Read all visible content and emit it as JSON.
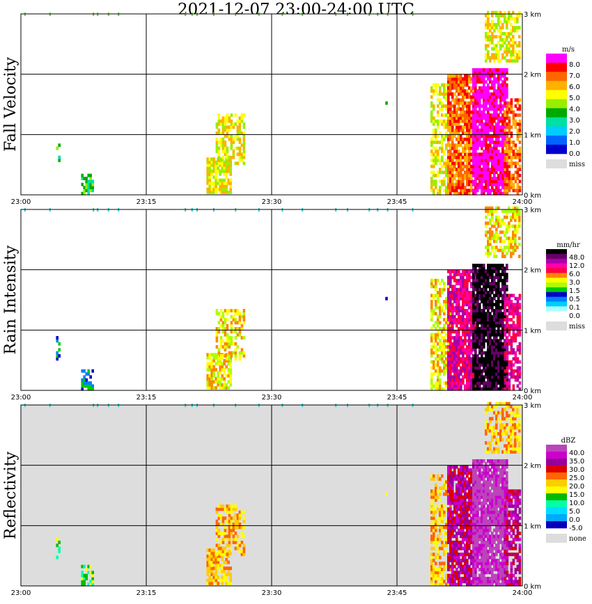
{
  "title": "2021-12-07   23:00-24:00 UTC",
  "chart_data": [
    {
      "type": "heatmap",
      "id": "fall_velocity",
      "ylabel": "Fall Velocity",
      "x_tick_labels": [
        "23:00",
        "23:15",
        "23:30",
        "23:45",
        "24:00"
      ],
      "y_tick_labels": [
        "0 km",
        "1 km",
        "2 km",
        "3 km"
      ],
      "ylim_km": [
        0,
        3
      ],
      "xlim_minutes": [
        0,
        60
      ],
      "background": "#ffffff",
      "legend": {
        "unit": "m/s",
        "labels": [
          "8.0",
          "7.0",
          "6.0",
          "5.0",
          "4.0",
          "3.0",
          "2.0",
          "1.0",
          "0.0"
        ],
        "colors": [
          "#ff00ff",
          "#ff0000",
          "#ff6600",
          "#ffb000",
          "#ffff00",
          "#99ee00",
          "#00aa00",
          "#00e0a0",
          "#00ccff",
          "#0066ff",
          "#0000cc"
        ],
        "extra_label": "miss",
        "extra_color": "#dddddd"
      }
    },
    {
      "type": "heatmap",
      "id": "rain_intensity",
      "ylabel": "Rain Intensity",
      "x_tick_labels": [
        "23:00",
        "23:15",
        "23:30",
        "23:45",
        "24:00"
      ],
      "y_tick_labels": [
        "0 km",
        "1 km",
        "2 km",
        "3 km"
      ],
      "ylim_km": [
        0,
        3
      ],
      "xlim_minutes": [
        0,
        60
      ],
      "background": "#ffffff",
      "legend": {
        "unit": "mm/hr",
        "labels": [
          "48.0",
          "12.0",
          "6.0",
          "3.0",
          "1.5",
          "0.5",
          "0.1",
          "0.0"
        ],
        "colors": [
          "#000000",
          "#660066",
          "#aa00aa",
          "#ff00aa",
          "#ff0044",
          "#ff8800",
          "#ffff00",
          "#aaff00",
          "#00cc00",
          "#0000cc",
          "#0080ff",
          "#00ccff",
          "#aaffff",
          "#ffffff"
        ],
        "extra_label": "miss",
        "extra_color": "#dddddd"
      }
    },
    {
      "type": "heatmap",
      "id": "reflectivity",
      "ylabel": "Reflectivity",
      "x_tick_labels": [
        "23:00",
        "23:15",
        "23:30",
        "23:45",
        "24:00"
      ],
      "y_tick_labels": [
        "0 km",
        "1 km",
        "2 km",
        "3 km"
      ],
      "ylim_km": [
        0,
        3
      ],
      "xlim_minutes": [
        0,
        60
      ],
      "background": "#dddddd",
      "legend": {
        "unit": "dBZ",
        "labels": [
          "40.0",
          "35.0",
          "30.0",
          "25.0",
          "20.0",
          "15.0",
          "10.0",
          "5.0",
          "0.0",
          "-5.0"
        ],
        "colors": [
          "#bb44bb",
          "#cc00cc",
          "#990099",
          "#dd0000",
          "#ff6600",
          "#ffcc00",
          "#ffff00",
          "#00bb00",
          "#00ffaa",
          "#00ddff",
          "#00aaff",
          "#0000bb"
        ],
        "extra_label": "none",
        "extra_color": "#dddddd"
      }
    }
  ]
}
